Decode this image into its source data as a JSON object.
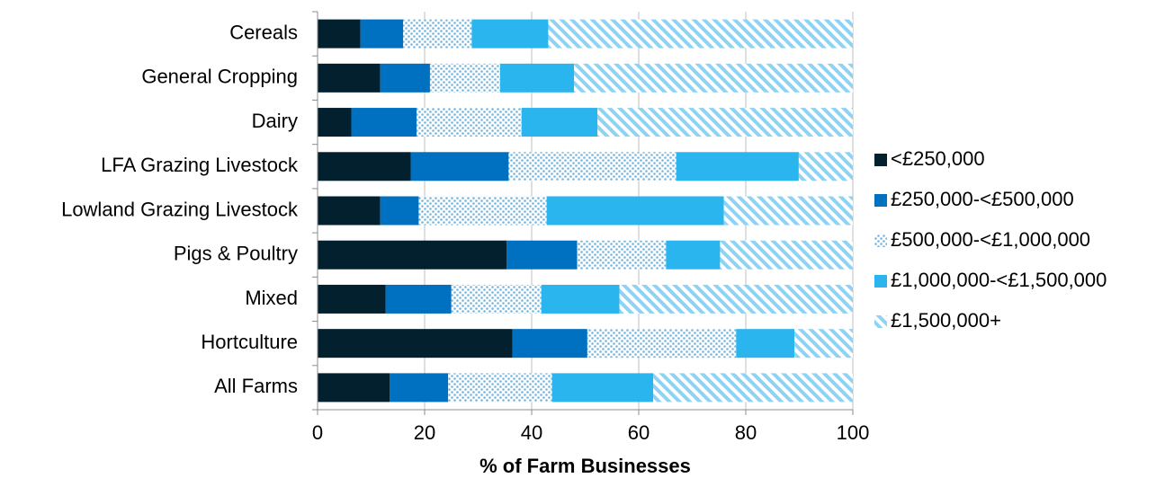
{
  "chart_data": {
    "type": "bar",
    "orientation": "horizontal",
    "stacked": true,
    "categories": [
      "Cereals",
      "General Cropping",
      "Dairy",
      "LFA Grazing Livestock",
      "Lowland Grazing Livestock",
      "Pigs & Poultry",
      "Mixed",
      "Hortculture",
      "All Farms"
    ],
    "series": [
      {
        "name": "<£250,000",
        "color": "#03202e",
        "pattern": "solid",
        "values": [
          8,
          11.7,
          6.3,
          17.4,
          11.7,
          35.3,
          12.7,
          36.4,
          13.5
        ]
      },
      {
        "name": "£250,000-<£500,000",
        "color": "#0070c0",
        "pattern": "solid",
        "values": [
          8,
          9.3,
          12.2,
          18.3,
          7.2,
          13.2,
          12.3,
          14,
          10.9
        ]
      },
      {
        "name": "£500,000-<£1,000,000",
        "color": "#6fb8e6",
        "pattern": "dots",
        "values": [
          12.8,
          13.1,
          19.6,
          31.3,
          23.9,
          16.6,
          16.8,
          27.8,
          19.4
        ]
      },
      {
        "name": "£1,000,000-<£1,500,000",
        "color": "#2bb5ee",
        "pattern": "solid",
        "values": [
          14.3,
          13.8,
          14.2,
          22.9,
          33.1,
          10.1,
          14.6,
          10.9,
          18.9
        ]
      },
      {
        "name": "£1,500,000+",
        "color": "#8fd3f4",
        "pattern": "hatch",
        "values": [
          56.9,
          52.1,
          47.7,
          10.1,
          24.1,
          24.8,
          43.6,
          10.9,
          37.3
        ]
      }
    ],
    "xlabel": "% of Farm Businesses",
    "xlim": [
      0,
      100
    ],
    "xticks": [
      0,
      20,
      40,
      60,
      80,
      100
    ],
    "grid": "vertical",
    "legend": "right"
  }
}
